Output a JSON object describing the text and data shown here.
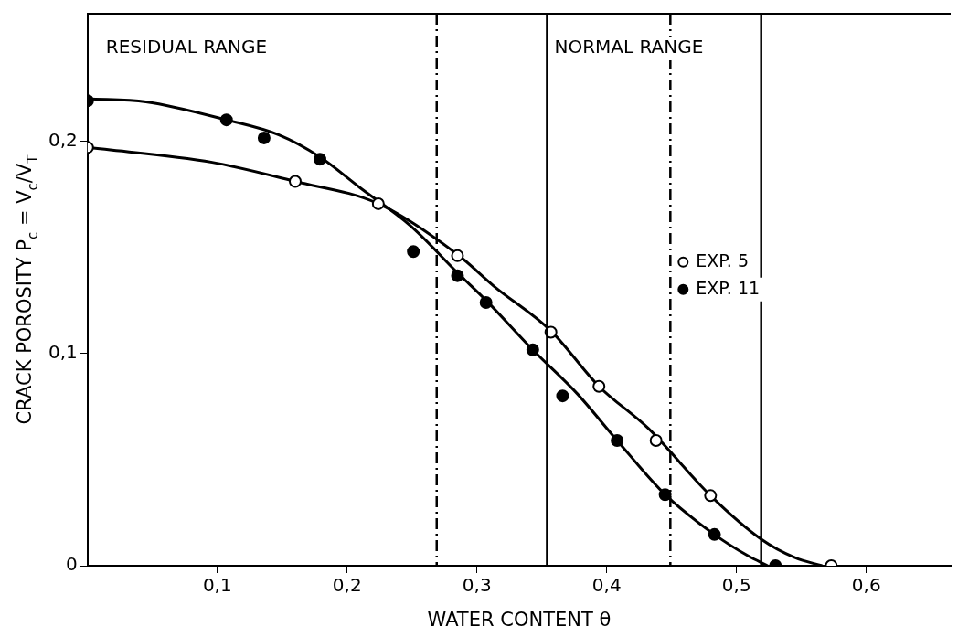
{
  "chart_data": {
    "type": "scatter",
    "xlabel": "WATER CONTENT θ",
    "ylabel": "CRACK POROSITY P$_{c}$ = V$_{c}$/V$_{T}$",
    "xlim": [
      0,
      0.665
    ],
    "ylim": [
      0,
      0.26
    ],
    "xticks": [
      {
        "value": 0.1,
        "label": "0,1"
      },
      {
        "value": 0.2,
        "label": "0,2"
      },
      {
        "value": 0.3,
        "label": "0,3"
      },
      {
        "value": 0.4,
        "label": "0,4"
      },
      {
        "value": 0.5,
        "label": "0,5"
      },
      {
        "value": 0.6,
        "label": "0,6"
      }
    ],
    "yticks": [
      0,
      {
        "value": 0.1,
        "label": "0,1"
      },
      {
        "value": 0.2,
        "label": "0,2"
      }
    ],
    "grid": false,
    "legend": "right",
    "series": [
      {
        "name": "EXP. 5",
        "marker": "circle",
        "color": "#ffffff",
        "x": [
          0,
          0.16,
          0.224,
          0.285,
          0.357,
          0.394,
          0.438,
          0.48,
          0.573
        ],
        "values": [
          0.197,
          0.181,
          0.1705,
          0.146,
          0.11,
          0.0845,
          0.059,
          0.033,
          0
        ]
      },
      {
        "name": "EXP. 11",
        "marker": "circle",
        "color": "#000000",
        "x": [
          0,
          0.107,
          0.136,
          0.179,
          0.251,
          0.285,
          0.307,
          0.343,
          0.366,
          0.408,
          0.445,
          0.483,
          0.53
        ],
        "values": [
          0.219,
          0.21,
          0.2015,
          0.1915,
          0.148,
          0.1366,
          0.124,
          0.1017,
          0.08,
          0.059,
          0.0335,
          0.0147,
          0
        ]
      },
      {
        "type": "line",
        "marker": "none",
        "color": "#000000",
        "x": [
          0,
          0.096,
          0.16,
          0.224,
          0.285,
          0.313,
          0.357,
          0.394,
          0.432,
          0.48,
          0.519,
          0.545,
          0.566
        ],
        "values": [
          0.197,
          0.19,
          0.181,
          0.1705,
          0.1466,
          0.1317,
          0.1106,
          0.0845,
          0.0647,
          0.033,
          0.0125,
          0.0038,
          0
        ]
      },
      {
        "type": "line",
        "marker": "none",
        "color": "#000000",
        "x": [
          0,
          0.045,
          0.107,
          0.147,
          0.179,
          0.21,
          0.249,
          0.285,
          0.307,
          0.343,
          0.377,
          0.408,
          0.445,
          0.483,
          0.509,
          0.524
        ],
        "values": [
          0.22,
          0.2185,
          0.21,
          0.203,
          0.1925,
          0.178,
          0.16,
          0.138,
          0.125,
          0.1017,
          0.0812,
          0.059,
          0.0335,
          0.0147,
          0.0046,
          0
        ]
      }
    ],
    "ref_lines": [
      {
        "axis": "x",
        "value": 0.269,
        "line_style": "dashed"
      },
      {
        "axis": "x",
        "value": 0.354,
        "line_style": "solid"
      },
      {
        "axis": "x",
        "value": 0.449,
        "line_style": "dashed"
      },
      {
        "axis": "x",
        "value": 0.519,
        "line_style": "solid"
      }
    ],
    "annotations": [
      "RESIDUAL RANGE",
      "NORMAL RANGE"
    ]
  }
}
